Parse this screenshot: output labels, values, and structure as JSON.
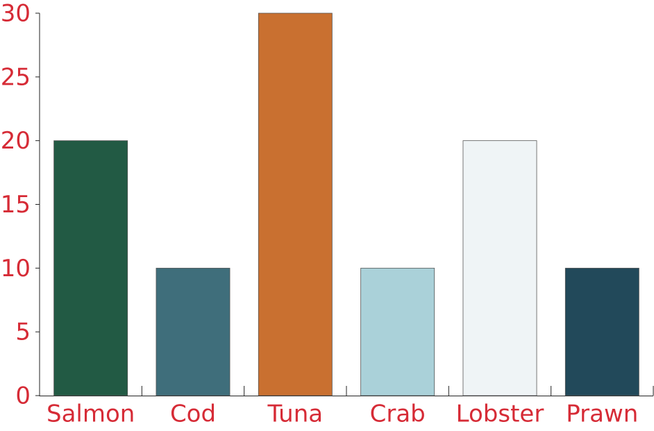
{
  "chart_data": {
    "type": "bar",
    "categories": [
      "Salmon",
      "Cod",
      "Tuna",
      "Crab",
      "Lobster",
      "Prawn"
    ],
    "values": [
      20,
      10,
      30,
      10,
      20,
      10
    ],
    "colors": [
      "#225a44",
      "#3f6e7b",
      "#c97030",
      "#aad1d9",
      "#eff4f6",
      "#22495a"
    ],
    "label_color": "#d62b36",
    "ylim": [
      0,
      30
    ],
    "yticks": [
      0,
      5,
      10,
      15,
      20,
      25,
      30
    ],
    "grid": false
  }
}
